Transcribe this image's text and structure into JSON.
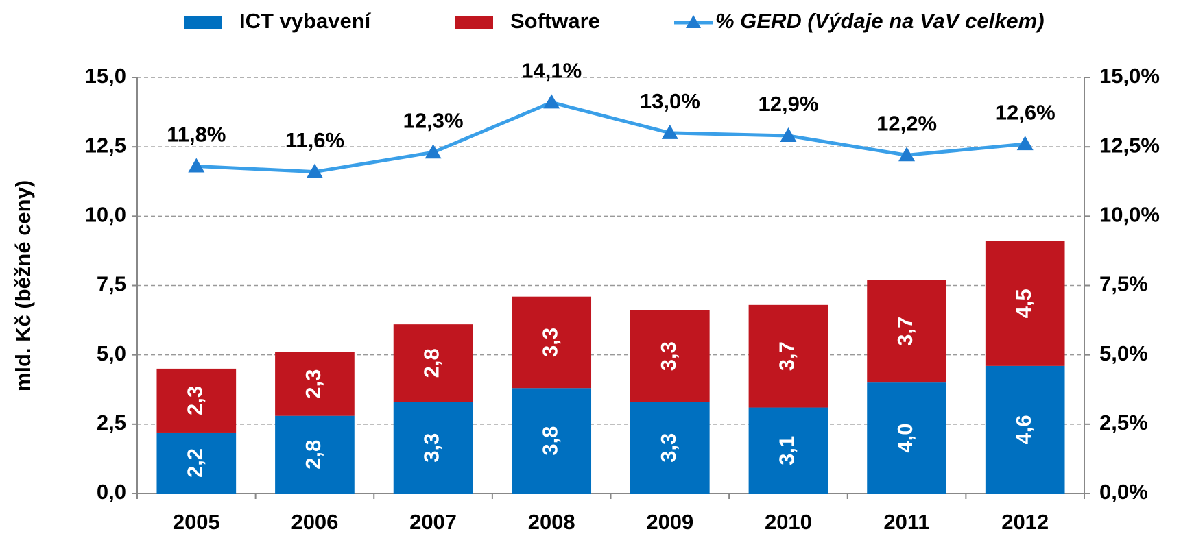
{
  "chart_data": {
    "type": "bar",
    "stacked": true,
    "categories": [
      "2005",
      "2006",
      "2007",
      "2008",
      "2009",
      "2010",
      "2011",
      "2012"
    ],
    "series": [
      {
        "name": "ICT vybavení",
        "color": "#0070c0",
        "values": [
          2.2,
          2.8,
          3.3,
          3.8,
          3.3,
          3.1,
          4.0,
          4.6
        ],
        "value_labels": [
          "2,2",
          "2,8",
          "3,3",
          "3,8",
          "3,3",
          "3,1",
          "4,0",
          "4,6"
        ]
      },
      {
        "name": "Software",
        "color": "#c0161f",
        "values": [
          2.3,
          2.3,
          2.8,
          3.3,
          3.3,
          3.7,
          3.7,
          4.5
        ],
        "value_labels": [
          "2,3",
          "2,3",
          "2,8",
          "3,3",
          "3,3",
          "3,7",
          "3,7",
          "4,5"
        ]
      },
      {
        "name": "% GERD (Výdaje na VaV celkem)",
        "type": "line",
        "axis": "y2",
        "color": "#3a9fe8",
        "marker_color": "#1f7bd0",
        "values": [
          11.8,
          11.6,
          12.3,
          14.1,
          13.0,
          12.9,
          12.2,
          12.6
        ],
        "value_labels": [
          "11,8%",
          "11,6%",
          "12,3%",
          "14,1%",
          "13,0%",
          "12,9%",
          "12,2%",
          "12,6%"
        ]
      }
    ],
    "ylabel": "mld. Kč (běžné ceny)",
    "ylim": [
      0,
      15
    ],
    "yticks": [
      {
        "value": 0,
        "label": "0,0"
      },
      {
        "value": 2.5,
        "label": "2,5"
      },
      {
        "value": 5,
        "label": "5,0"
      },
      {
        "value": 7.5,
        "label": "7,5"
      },
      {
        "value": 10,
        "label": "10,0"
      },
      {
        "value": 12.5,
        "label": "12,5"
      },
      {
        "value": 15,
        "label": "15,0"
      }
    ],
    "y2lim": [
      0,
      15
    ],
    "y2ticks": [
      {
        "value": 0,
        "label": "0,0%"
      },
      {
        "value": 2.5,
        "label": "2,5%"
      },
      {
        "value": 5,
        "label": "5,0%"
      },
      {
        "value": 7.5,
        "label": "7,5%"
      },
      {
        "value": 10,
        "label": "10,0%"
      },
      {
        "value": 12.5,
        "label": "12,5%"
      },
      {
        "value": 15,
        "label": "15,0%"
      }
    ],
    "grid": true,
    "legend": "top"
  }
}
